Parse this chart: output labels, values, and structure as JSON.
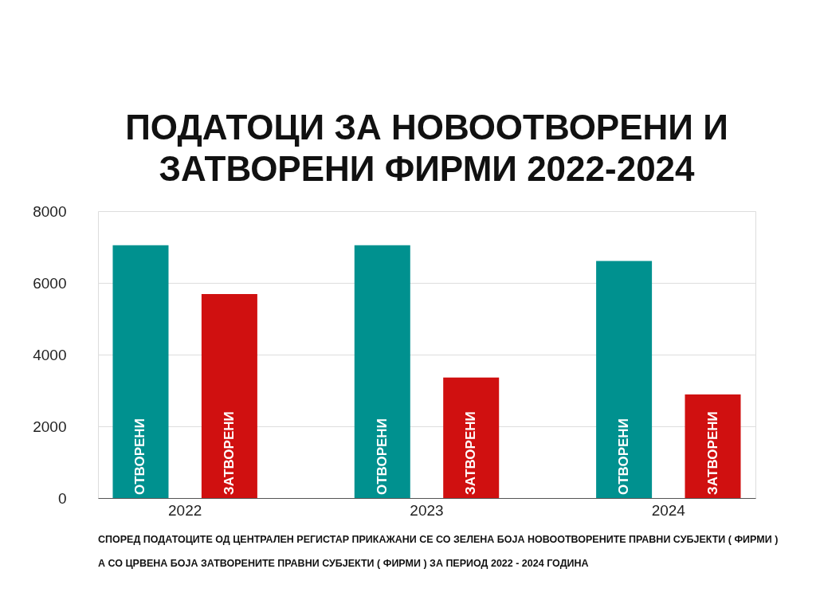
{
  "chart_data": {
    "type": "bar",
    "title": [
      "ПОДАТОЦИ ЗА НОВООТВОРЕНИ И",
      "ЗАТВОРЕНИ ФИРМИ 2022-2024"
    ],
    "categories": [
      "2022",
      "2023",
      "2024"
    ],
    "series": [
      {
        "name": "ОТВОРЕНИ",
        "color": "#00918f",
        "values": [
          7050,
          7050,
          6610
        ]
      },
      {
        "name": "ЗАТВОРЕНИ",
        "color": "#d01010",
        "values": [
          5690,
          3360,
          2890
        ]
      }
    ],
    "ylim": [
      0,
      8000
    ],
    "yticks": [
      0,
      2000,
      4000,
      6000,
      8000
    ],
    "grid": "y",
    "legend": false,
    "annotations": [
      "СПОРЕД ПОДАТОЦИТЕ ОД ЦЕНТРАЛЕН РЕГИСТАР ПРИКАЖАНИ СЕ СО ЗЕЛЕНА БОЈА НОВООТВОРЕНИТЕ ПРАВНИ СУБЈЕКТИ ( ФИРМИ )",
      "А СО ЦРВЕНА БОЈА ЗАТВОРЕНИТЕ ПРАВНИ СУБЈЕКТИ ( ФИРМИ ) ЗА ПЕРИОД 2022 - 2024 ГОДИНА"
    ]
  }
}
